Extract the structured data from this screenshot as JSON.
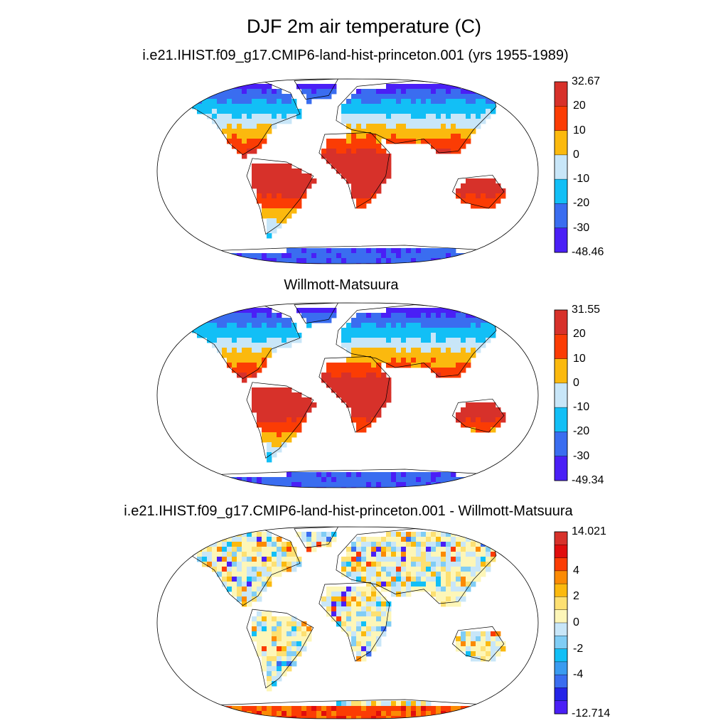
{
  "figure": {
    "title": "DJF 2m air temperature (C)"
  },
  "panels": [
    {
      "id": "model",
      "title": "i.e21.IHIST.f09_g17.CMIP6-land-hist-princeton.001 (yrs 1955-1989)",
      "projection": "Robinson",
      "colorbar": {
        "min_label": "-48.46",
        "max_label": "32.67",
        "tick_labels": [
          "20",
          "10",
          "0",
          "-10",
          "-20",
          "-30"
        ],
        "colors": [
          "#d7312a",
          "#fb3c04",
          "#fbb90e",
          "#c8e6f8",
          "#12bff6",
          "#3a6df0",
          "#4a1ff6"
        ]
      }
    },
    {
      "id": "obs",
      "title": "Willmott-Matsuura",
      "projection": "Robinson",
      "colorbar": {
        "min_label": "-49.34",
        "max_label": "31.55",
        "tick_labels": [
          "20",
          "10",
          "0",
          "-10",
          "-20",
          "-30"
        ],
        "colors": [
          "#d7312a",
          "#fb3c04",
          "#fbb90e",
          "#c8e6f8",
          "#12bff6",
          "#3a6df0",
          "#4a1ff6"
        ]
      }
    },
    {
      "id": "diff",
      "title": "i.e21.IHIST.f09_g17.CMIP6-land-hist-princeton.001 - Willmott-Matsuura",
      "projection": "Robinson",
      "colorbar": {
        "min_label": "-12.714",
        "max_label": "14.021",
        "tick_labels": [
          "4",
          "2",
          "0",
          "-2",
          "-4"
        ],
        "colors": [
          "#d7312a",
          "#e00d0d",
          "#fb3c04",
          "#fb8a04",
          "#fbb90e",
          "#fde072",
          "#fdf6b8",
          "#c8e6f8",
          "#80cdf5",
          "#12bff6",
          "#3a9bf0",
          "#3a6df0",
          "#2424e8",
          "#4a1ff6"
        ]
      }
    }
  ]
}
